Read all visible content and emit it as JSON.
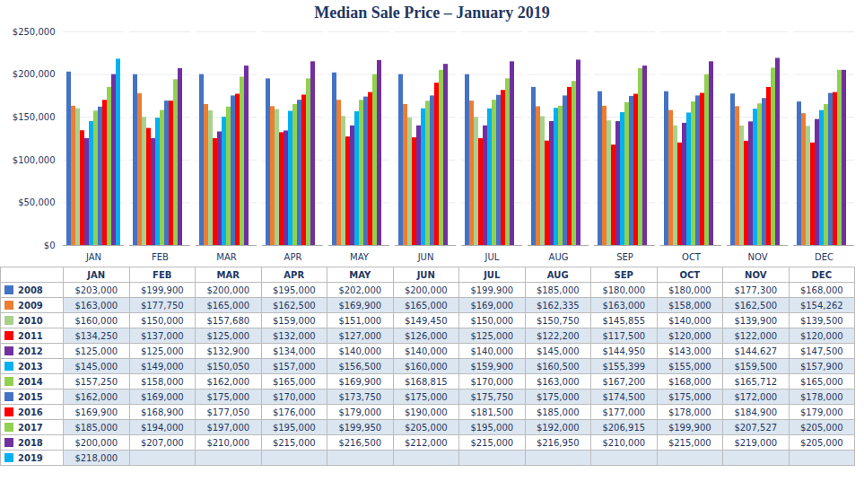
{
  "chart_data": {
    "type": "bar",
    "title": "Median Sale Price – January 2019",
    "categories": [
      "JAN",
      "FEB",
      "MAR",
      "APR",
      "MAY",
      "JUN",
      "JUL",
      "AUG",
      "SEP",
      "OCT",
      "NOV",
      "DEC"
    ],
    "series": [
      {
        "name": "2008",
        "color": "#4472C4",
        "values": [
          203000,
          199900,
          200000,
          195000,
          202000,
          200000,
          199900,
          185000,
          180000,
          180000,
          177300,
          168000
        ],
        "value_labels": [
          "$203,000",
          "$199,900",
          "$200,000",
          "$195,000",
          "$202,000",
          "$200,000",
          "$199,900",
          "$185,000",
          "$180,000",
          "$180,000",
          "$177,300",
          "$168,000"
        ]
      },
      {
        "name": "2009",
        "color": "#ED7D31",
        "values": [
          163000,
          177750,
          165000,
          162500,
          169900,
          165000,
          169000,
          162335,
          163000,
          158000,
          162500,
          154262
        ],
        "value_labels": [
          "$163,000",
          "$177,750",
          "$165,000",
          "$162,500",
          "$169,900",
          "$165,000",
          "$169,000",
          "$162,335",
          "$163,000",
          "$158,000",
          "$162,500",
          "$154,262"
        ]
      },
      {
        "name": "2010",
        "color": "#A9D18E",
        "values": [
          160000,
          150000,
          157680,
          159000,
          151000,
          149450,
          150000,
          150750,
          145855,
          140000,
          139900,
          139500
        ],
        "value_labels": [
          "$160,000",
          "$150,000",
          "$157,680",
          "$159,000",
          "$151,000",
          "$149,450",
          "$150,000",
          "$150,750",
          "$145,855",
          "$140,000",
          "$139,900",
          "$139,500"
        ]
      },
      {
        "name": "2011",
        "color": "#FF0000",
        "values": [
          134250,
          137000,
          125000,
          132000,
          127000,
          126000,
          125000,
          122200,
          117500,
          120000,
          122000,
          120000
        ],
        "value_labels": [
          "$134,250",
          "$137,000",
          "$125,000",
          "$132,000",
          "$127,000",
          "$126,000",
          "$125,000",
          "$122,200",
          "$117,500",
          "$120,000",
          "$122,000",
          "$120,000"
        ]
      },
      {
        "name": "2012",
        "color": "#7030A0",
        "values": [
          125000,
          125000,
          132900,
          134000,
          140000,
          140000,
          140000,
          145000,
          144950,
          143000,
          144627,
          147500
        ],
        "value_labels": [
          "$125,000",
          "$125,000",
          "$132,900",
          "$134,000",
          "$140,000",
          "$140,000",
          "$140,000",
          "$145,000",
          "$144,950",
          "$143,000",
          "$144,627",
          "$147,500"
        ]
      },
      {
        "name": "2013",
        "color": "#00B0F0",
        "values": [
          145000,
          149000,
          150050,
          157000,
          156500,
          160000,
          159900,
          160500,
          155399,
          155000,
          159500,
          157900
        ],
        "value_labels": [
          "$145,000",
          "$149,000",
          "$150,050",
          "$157,000",
          "$156,500",
          "$160,000",
          "$159,900",
          "$160,500",
          "$155,399",
          "$155,000",
          "$159,500",
          "$157,900"
        ]
      },
      {
        "name": "2014",
        "color": "#92D050",
        "values": [
          157250,
          158000,
          162000,
          165000,
          169900,
          168815,
          170000,
          163000,
          167200,
          168000,
          165712,
          165000
        ],
        "value_labels": [
          "$157,250",
          "$158,000",
          "$162,000",
          "$165,000",
          "$169,900",
          "$168,815",
          "$170,000",
          "$163,000",
          "$167,200",
          "$168,000",
          "$165,712",
          "$165,000"
        ]
      },
      {
        "name": "2015",
        "color": "#4472C4",
        "values": [
          162000,
          169000,
          175000,
          170000,
          173750,
          175000,
          175750,
          175000,
          174500,
          175000,
          172000,
          178000
        ],
        "value_labels": [
          "$162,000",
          "$169,000",
          "$175,000",
          "$170,000",
          "$173,750",
          "$175,000",
          "$175,750",
          "$175,000",
          "$174,500",
          "$175,000",
          "$172,000",
          "$178,000"
        ]
      },
      {
        "name": "2016",
        "color": "#FF0000",
        "values": [
          169900,
          168900,
          177050,
          176000,
          179000,
          190000,
          181500,
          185000,
          177000,
          178000,
          184900,
          179000
        ],
        "value_labels": [
          "$169,900",
          "$168,900",
          "$177,050",
          "$176,000",
          "$179,000",
          "$190,000",
          "$181,500",
          "$185,000",
          "$177,000",
          "$178,000",
          "$184,900",
          "$179,000"
        ]
      },
      {
        "name": "2017",
        "color": "#92D050",
        "values": [
          185000,
          194000,
          197000,
          195000,
          199950,
          205000,
          195000,
          192000,
          206915,
          199900,
          207527,
          205000
        ],
        "value_labels": [
          "$185,000",
          "$194,000",
          "$197,000",
          "$195,000",
          "$199,950",
          "$205,000",
          "$195,000",
          "$192,000",
          "$206,915",
          "$199,900",
          "$207,527",
          "$205,000"
        ]
      },
      {
        "name": "2018",
        "color": "#7030A0",
        "values": [
          200000,
          207000,
          210000,
          215000,
          216500,
          212000,
          215000,
          216950,
          210000,
          215000,
          219000,
          205000
        ],
        "value_labels": [
          "$200,000",
          "$207,000",
          "$210,000",
          "$215,000",
          "$216,500",
          "$212,000",
          "$215,000",
          "$216,950",
          "$210,000",
          "$215,000",
          "$219,000",
          "$205,000"
        ]
      },
      {
        "name": "2019",
        "color": "#00B0F0",
        "values": [
          218000,
          null,
          null,
          null,
          null,
          null,
          null,
          null,
          null,
          null,
          null,
          null
        ],
        "value_labels": [
          "$218,000",
          null,
          null,
          null,
          null,
          null,
          null,
          null,
          null,
          null,
          null,
          null
        ]
      }
    ],
    "ylim": [
      0,
      250000
    ],
    "yticks": [
      {
        "value": 0,
        "label": "$0"
      },
      {
        "value": 50000,
        "label": "$50,000"
      },
      {
        "value": 100000,
        "label": "$100,000"
      },
      {
        "value": 150000,
        "label": "$150,000"
      },
      {
        "value": 200000,
        "label": "$200,000"
      },
      {
        "value": 250000,
        "label": "$250,000"
      }
    ],
    "grid": true,
    "legend": "bottom"
  }
}
